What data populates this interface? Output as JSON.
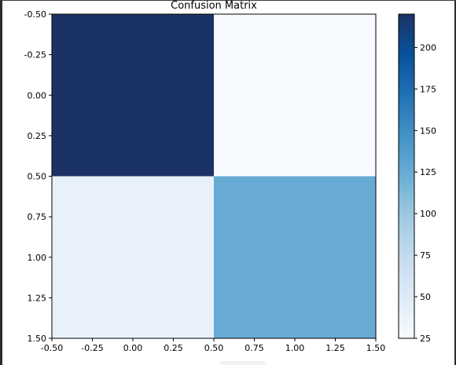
{
  "chart_data": {
    "type": "heatmap",
    "title": "Confusion Matrix",
    "xlabel": "",
    "ylabel": "",
    "xlim": [
      -0.5,
      1.5
    ],
    "ylim": [
      1.5,
      -0.5
    ],
    "x_ticks": [
      "-0.50",
      "-0.25",
      "0.00",
      "0.25",
      "0.50",
      "0.75",
      "1.00",
      "1.25",
      "1.50"
    ],
    "y_ticks": [
      "-0.50",
      "-0.25",
      "0.00",
      "0.25",
      "0.50",
      "0.75",
      "1.00",
      "1.25",
      "1.50"
    ],
    "x_tick_values": [
      -0.5,
      -0.25,
      0,
      0.25,
      0.5,
      0.75,
      1.0,
      1.25,
      1.5
    ],
    "y_tick_values": [
      -0.5,
      -0.25,
      0,
      0.25,
      0.5,
      0.75,
      1.0,
      1.25,
      1.5
    ],
    "matrix": [
      [
        220,
        25
      ],
      [
        40,
        125
      ]
    ],
    "colormap": "Blues",
    "colorbar": {
      "min": 25,
      "max": 220,
      "ticks": [
        "200",
        "175",
        "150",
        "125",
        "100",
        "75",
        "50",
        "25"
      ],
      "tick_values": [
        200,
        175,
        150,
        125,
        100,
        75,
        50,
        25
      ]
    },
    "grid": false,
    "colors": {
      "low": "#f7fbff",
      "high": "#1b3364"
    }
  }
}
